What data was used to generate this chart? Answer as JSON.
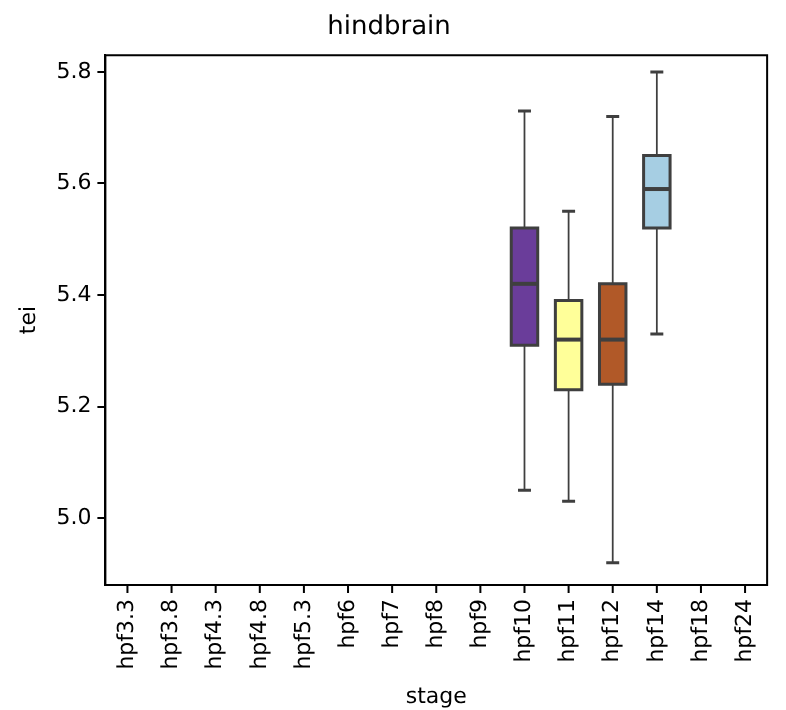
{
  "chart_data": {
    "type": "box",
    "title": "hindbrain",
    "xlabel": "stage",
    "ylabel": "tei",
    "categories": [
      "hpf3.3",
      "hpf3.8",
      "hpf4.3",
      "hpf4.8",
      "hpf5.3",
      "hpf6",
      "hpf7",
      "hpf8",
      "hpf9",
      "hpf10",
      "hpf11",
      "hpf12",
      "hpf14",
      "hpf18",
      "hpf24"
    ],
    "boxes": [
      null,
      null,
      null,
      null,
      null,
      null,
      null,
      null,
      null,
      {
        "low": 5.05,
        "q1": 5.31,
        "median": 5.42,
        "q3": 5.52,
        "high": 5.73
      },
      {
        "low": 5.03,
        "q1": 5.23,
        "median": 5.32,
        "q3": 5.39,
        "high": 5.55
      },
      {
        "low": 4.92,
        "q1": 5.24,
        "median": 5.32,
        "q3": 5.42,
        "high": 5.72
      },
      {
        "low": 5.33,
        "q1": 5.52,
        "median": 5.59,
        "q3": 5.65,
        "high": 5.8
      },
      null,
      null
    ],
    "colors": [
      "#6a3d9a",
      "#ffff99",
      "#b15928",
      "#a6cee3",
      "#a6cee3",
      "#a6cee3",
      "#a6cee3",
      "#a6cee3",
      "#a6cee3",
      "#6a3d9a",
      "#ffff99",
      "#b15928",
      "#a6cee3",
      "#6a3d9a",
      "#ffff99"
    ],
    "ylim": [
      4.88,
      5.83
    ],
    "yticks": [
      {
        "value": 5,
        "label": "5.0"
      },
      5.2,
      5.4,
      5.6,
      5.8
    ],
    "grid": false,
    "legend": false
  }
}
